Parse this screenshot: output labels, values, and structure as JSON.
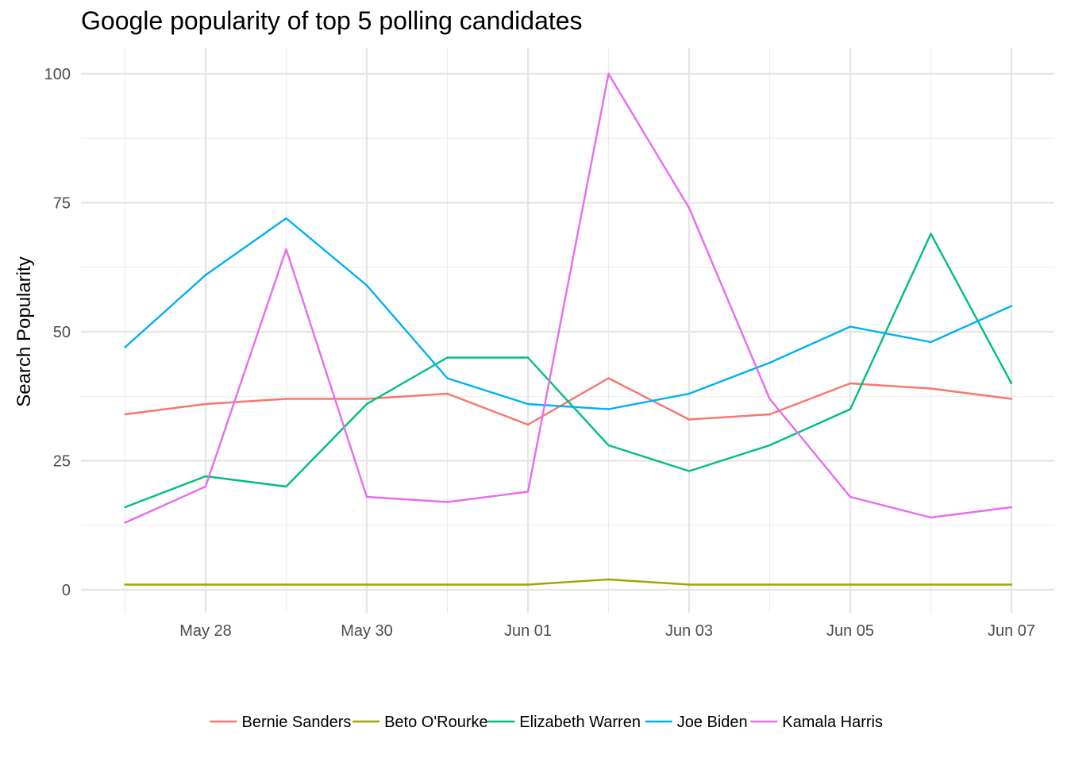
{
  "chart_data": {
    "type": "line",
    "title": "Google popularity of top 5 polling candidates",
    "xlabel": "",
    "ylabel": "Search Popularity",
    "x": [
      "2019-05-27",
      "2019-05-28",
      "2019-05-29",
      "2019-05-30",
      "2019-05-31",
      "2019-06-01",
      "2019-06-02",
      "2019-06-03",
      "2019-06-04",
      "2019-06-05",
      "2019-06-06",
      "2019-06-07"
    ],
    "x_tick_labels": [
      {
        "date": "2019-05-28",
        "label": "May 28"
      },
      {
        "date": "2019-05-30",
        "label": "May 30"
      },
      {
        "date": "2019-06-01",
        "label": "Jun 01"
      },
      {
        "date": "2019-06-03",
        "label": "Jun 03"
      },
      {
        "date": "2019-06-05",
        "label": "Jun 05"
      },
      {
        "date": "2019-06-07",
        "label": "Jun 07"
      }
    ],
    "y_ticks": [
      0,
      25,
      50,
      75,
      100
    ],
    "ylim": [
      0,
      100
    ],
    "grid": true,
    "legend_position": "bottom",
    "series": [
      {
        "name": "Bernie Sanders",
        "color": "#F8766D",
        "values": [
          34,
          36,
          37,
          37,
          38,
          32,
          41,
          33,
          34,
          40,
          39,
          37
        ]
      },
      {
        "name": "Beto O'Rourke",
        "color": "#A3A500",
        "values": [
          1,
          1,
          1,
          1,
          1,
          1,
          2,
          1,
          1,
          1,
          1,
          1
        ]
      },
      {
        "name": "Elizabeth Warren",
        "color": "#00BF7D",
        "values": [
          16,
          22,
          20,
          36,
          45,
          45,
          28,
          23,
          28,
          35,
          69,
          40
        ]
      },
      {
        "name": "Joe Biden",
        "color": "#00B0F6",
        "values": [
          47,
          61,
          72,
          59,
          41,
          36,
          35,
          38,
          44,
          51,
          48,
          55
        ]
      },
      {
        "name": "Kamala Harris",
        "color": "#E76BF3",
        "values": [
          13,
          20,
          66,
          18,
          17,
          19,
          100,
          74,
          37,
          18,
          14,
          16
        ]
      }
    ]
  }
}
